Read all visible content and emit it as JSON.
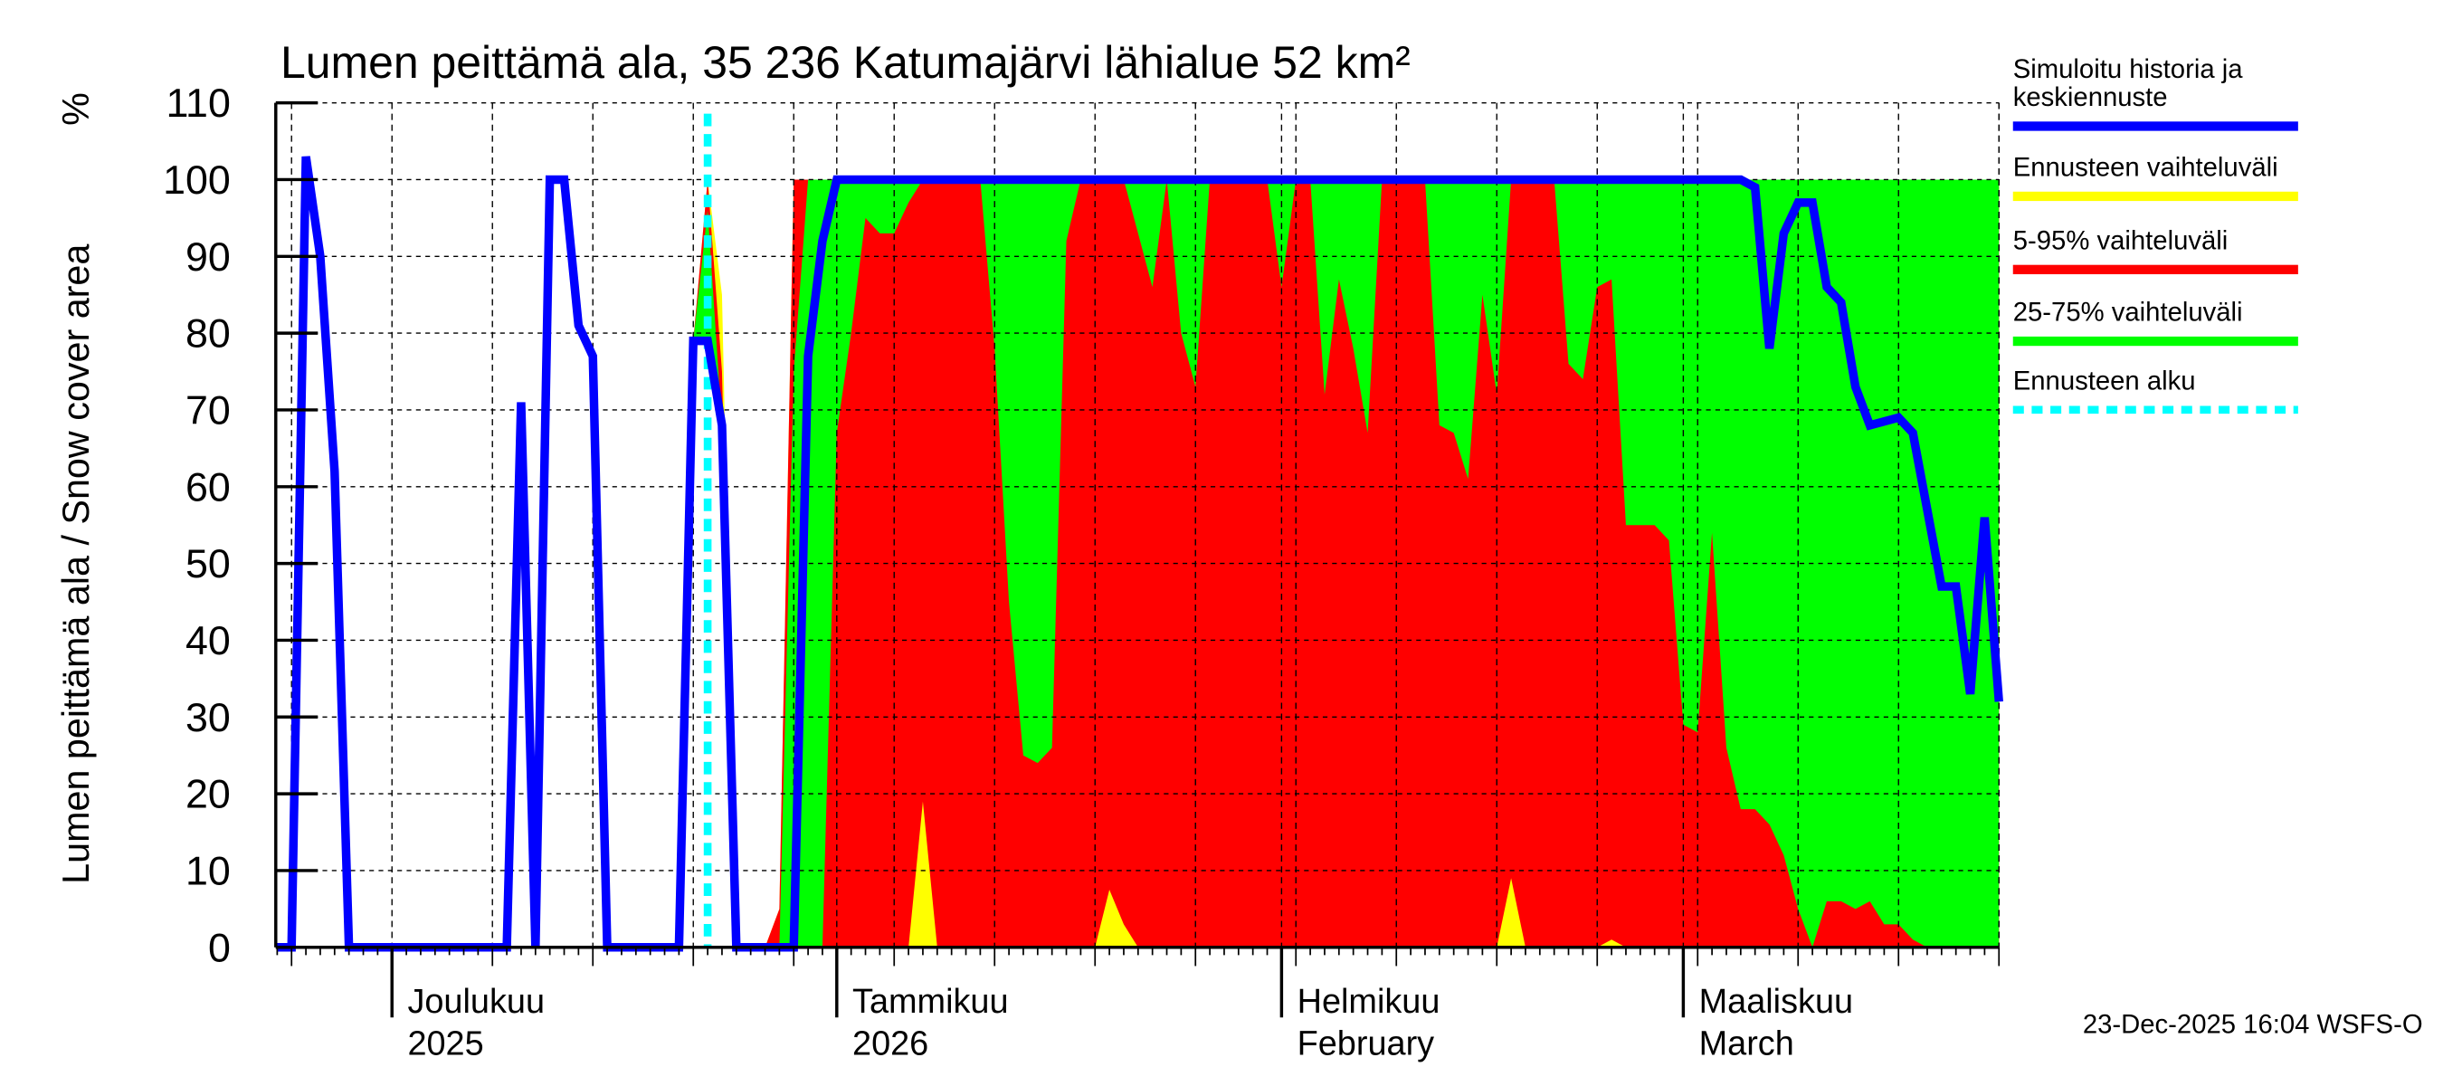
{
  "title": "Lumen peittämä ala, 35 236 Katumajärvi lähialue 52 km²",
  "footer": "23-Dec-2025 16:04 WSFS-O",
  "legend": {
    "history_line1": "Simuloitu historia ja",
    "history_line2": "keskiennuste",
    "range": "Ennusteen vaihteluväli",
    "p5_95": "5-95% vaihteluväli",
    "p25_75": "25-75% vaihteluväli",
    "forecast_start": "Ennusteen alku"
  },
  "colors": {
    "history": "#0000ff",
    "range": "#ffff00",
    "p5_95": "#ff0000",
    "p25_75": "#00ff00",
    "forecast_start": "#00ffff"
  },
  "chart_data": {
    "type": "area",
    "title": "Lumen peittämä ala, 35 236 Katumajärvi lähialue 52 km²",
    "ylabel": "Lumen peittämä ala / Snow cover area",
    "yunit": "%",
    "xlim": [
      "2025-11-23",
      "2026-03-23"
    ],
    "ylim": [
      0,
      110
    ],
    "yticks": [
      0,
      10,
      20,
      30,
      40,
      50,
      60,
      70,
      80,
      90,
      100,
      110
    ],
    "grid": true,
    "legend_position": "right",
    "month_labels": [
      {
        "date": "2025-12-01",
        "line1": "Joulukuu",
        "line2": "2025"
      },
      {
        "date": "2026-01-01",
        "line1": "Tammikuu",
        "line2": "2026"
      },
      {
        "date": "2026-02-01",
        "line1": "Helmikuu",
        "line2": "February"
      },
      {
        "date": "2026-03-01",
        "line1": "Maaliskuu",
        "line2": "March"
      }
    ],
    "forecast_start": "2025-12-23",
    "history_and_median": [
      [
        "2025-11-23",
        0
      ],
      [
        "2025-11-24",
        0
      ],
      [
        "2025-11-25",
        103
      ],
      [
        "2025-11-26",
        90
      ],
      [
        "2025-11-27",
        62
      ],
      [
        "2025-11-28",
        0
      ],
      [
        "2025-12-09",
        0
      ],
      [
        "2025-12-10",
        71
      ],
      [
        "2025-12-11",
        0
      ],
      [
        "2025-12-12",
        100
      ],
      [
        "2025-12-13",
        100
      ],
      [
        "2025-12-14",
        81
      ],
      [
        "2025-12-15",
        77
      ],
      [
        "2025-12-16",
        0
      ],
      [
        "2025-12-21",
        0
      ],
      [
        "2025-12-22",
        79
      ],
      [
        "2025-12-23",
        79
      ],
      [
        "2025-12-24",
        68
      ],
      [
        "2025-12-25",
        0
      ],
      [
        "2025-12-29",
        0
      ],
      [
        "2025-12-30",
        77
      ],
      [
        "2025-12-31",
        92
      ],
      [
        "2026-01-01",
        100
      ],
      [
        "2026-03-05",
        100
      ],
      [
        "2026-03-06",
        99
      ],
      [
        "2026-03-07",
        78
      ],
      [
        "2026-03-08",
        93
      ],
      [
        "2026-03-09",
        97
      ],
      [
        "2026-03-10",
        97
      ],
      [
        "2026-03-11",
        86
      ],
      [
        "2026-03-12",
        84
      ],
      [
        "2026-03-13",
        73
      ],
      [
        "2026-03-14",
        68
      ],
      [
        "2026-03-15",
        68.5
      ],
      [
        "2026-03-16",
        69
      ],
      [
        "2026-03-17",
        67
      ],
      [
        "2026-03-18",
        57
      ],
      [
        "2026-03-19",
        47
      ],
      [
        "2026-03-20",
        47
      ],
      [
        "2026-03-21",
        33
      ],
      [
        "2026-03-22",
        56
      ],
      [
        "2026-03-23",
        32
      ]
    ],
    "bands": {
      "max": [
        [
          "2025-12-22",
          79
        ],
        [
          "2025-12-23",
          100
        ],
        [
          "2025-12-24",
          85
        ],
        [
          "2025-12-25",
          0
        ],
        [
          "2025-12-27",
          0
        ],
        [
          "2025-12-28",
          5
        ],
        [
          "2025-12-29",
          100
        ],
        [
          "2026-03-23",
          100
        ]
      ],
      "p95": [
        [
          "2025-12-22",
          79
        ],
        [
          "2025-12-23",
          100
        ],
        [
          "2025-12-24",
          75
        ],
        [
          "2025-12-25",
          0
        ],
        [
          "2025-12-27",
          0
        ],
        [
          "2025-12-28",
          5
        ],
        [
          "2025-12-29",
          100
        ],
        [
          "2026-03-23",
          100
        ]
      ],
      "p75": [
        [
          "2025-12-22",
          79
        ],
        [
          "2025-12-23",
          96
        ],
        [
          "2025-12-24",
          68
        ],
        [
          "2025-12-25",
          0
        ],
        [
          "2025-12-28",
          0
        ],
        [
          "2025-12-29",
          75
        ],
        [
          "2025-12-30",
          100
        ],
        [
          "2026-03-23",
          100
        ]
      ],
      "p25": [
        [
          "2025-12-22",
          79
        ],
        [
          "2025-12-23",
          79
        ],
        [
          "2025-12-24",
          68
        ],
        [
          "2025-12-25",
          0
        ],
        [
          "2025-12-31",
          0
        ],
        [
          "2026-01-01",
          67
        ],
        [
          "2026-01-02",
          80
        ],
        [
          "2026-01-03",
          95
        ],
        [
          "2026-01-04",
          93
        ],
        [
          "2026-01-05",
          93
        ],
        [
          "2026-01-06",
          97
        ],
        [
          "2026-01-07",
          100
        ],
        [
          "2026-01-11",
          100
        ],
        [
          "2026-01-12",
          78
        ],
        [
          "2026-01-13",
          45
        ],
        [
          "2026-01-14",
          25
        ],
        [
          "2026-01-15",
          24
        ],
        [
          "2026-01-16",
          26
        ],
        [
          "2026-01-17",
          92
        ],
        [
          "2026-01-18",
          100
        ],
        [
          "2026-01-21",
          100
        ],
        [
          "2026-01-22",
          93
        ],
        [
          "2026-01-23",
          86
        ],
        [
          "2026-01-24",
          100
        ],
        [
          "2026-01-25",
          80
        ],
        [
          "2026-01-26",
          73
        ],
        [
          "2026-01-27",
          100
        ],
        [
          "2026-01-31",
          100
        ],
        [
          "2026-02-01",
          86
        ],
        [
          "2026-02-02",
          100
        ],
        [
          "2026-02-03",
          100
        ],
        [
          "2026-02-04",
          72
        ],
        [
          "2026-02-05",
          87
        ],
        [
          "2026-02-06",
          78
        ],
        [
          "2026-02-07",
          67
        ],
        [
          "2026-02-08",
          100
        ],
        [
          "2026-02-11",
          100
        ],
        [
          "2026-02-12",
          68
        ],
        [
          "2026-02-13",
          67
        ],
        [
          "2026-02-14",
          61
        ],
        [
          "2026-02-15",
          85
        ],
        [
          "2026-02-16",
          72
        ],
        [
          "2026-02-17",
          100
        ],
        [
          "2026-02-20",
          100
        ],
        [
          "2026-02-21",
          76
        ],
        [
          "2026-02-22",
          74
        ],
        [
          "2026-02-23",
          86
        ],
        [
          "2026-02-24",
          87
        ],
        [
          "2026-02-25",
          55
        ],
        [
          "2026-02-27",
          55
        ],
        [
          "2026-02-28",
          53
        ],
        [
          "2026-03-01",
          29
        ],
        [
          "2026-03-02",
          28
        ],
        [
          "2026-03-03",
          54
        ],
        [
          "2026-03-04",
          26
        ],
        [
          "2026-03-05",
          18
        ],
        [
          "2026-03-06",
          18
        ],
        [
          "2026-03-07",
          16
        ],
        [
          "2026-03-08",
          12
        ],
        [
          "2026-03-09",
          5
        ],
        [
          "2026-03-10",
          0
        ],
        [
          "2026-03-11",
          6
        ],
        [
          "2026-03-12",
          6
        ],
        [
          "2026-03-13",
          5
        ],
        [
          "2026-03-14",
          6
        ],
        [
          "2026-03-15",
          3
        ],
        [
          "2026-03-16",
          3
        ],
        [
          "2026-03-17",
          1
        ],
        [
          "2026-03-18",
          0
        ],
        [
          "2026-03-23",
          0
        ]
      ],
      "p5": [
        [
          "2025-12-22",
          79
        ],
        [
          "2025-12-23",
          79
        ],
        [
          "2025-12-24",
          68
        ],
        [
          "2025-12-25",
          0
        ],
        [
          "2026-01-06",
          0
        ],
        [
          "2026-01-07",
          19
        ],
        [
          "2026-01-08",
          0
        ],
        [
          "2026-01-19",
          0
        ],
        [
          "2026-01-20",
          7.5
        ],
        [
          "2026-01-21",
          3
        ],
        [
          "2026-01-22",
          0
        ],
        [
          "2026-02-16",
          0
        ],
        [
          "2026-02-17",
          9
        ],
        [
          "2026-02-18",
          0
        ],
        [
          "2026-02-23",
          0
        ],
        [
          "2026-02-24",
          1
        ],
        [
          "2026-02-25",
          0
        ],
        [
          "2026-03-23",
          0
        ]
      ],
      "min": [
        [
          "2025-12-22",
          79
        ],
        [
          "2025-12-23",
          79
        ],
        [
          "2025-12-24",
          68
        ],
        [
          "2025-12-25",
          0
        ],
        [
          "2026-03-23",
          0
        ]
      ]
    }
  }
}
